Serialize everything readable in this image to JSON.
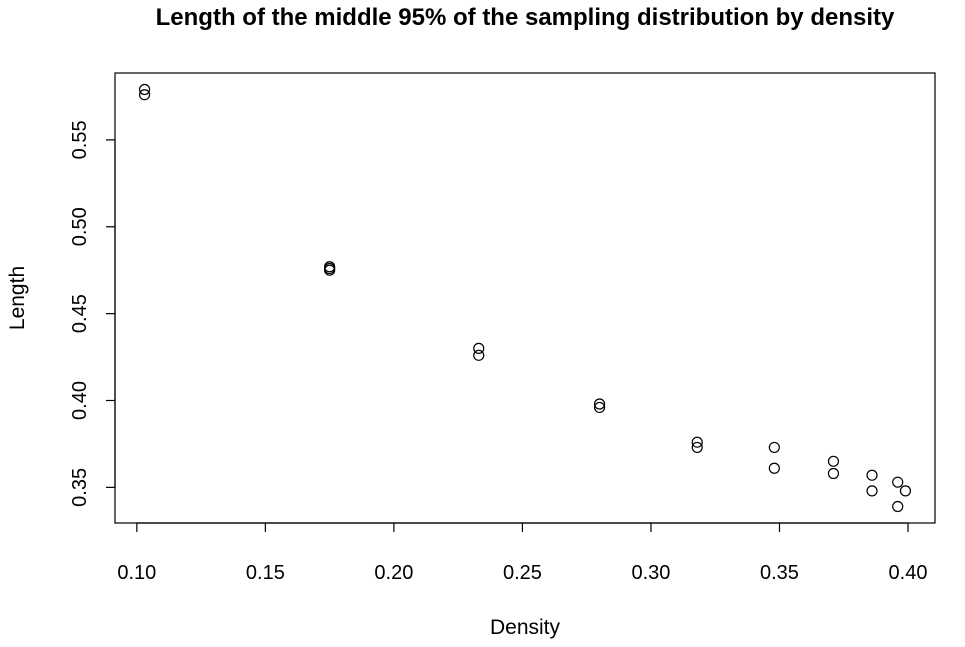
{
  "chart_data": {
    "type": "scatter",
    "title": "Length of the middle 95% of the sampling distribution by density",
    "xlabel": "Density",
    "ylabel": "Length",
    "xlim": [
      0.0915,
      0.4105
    ],
    "ylim": [
      0.3295,
      0.5885
    ],
    "x_ticks": [
      0.1,
      0.15,
      0.2,
      0.25,
      0.3,
      0.35,
      0.4
    ],
    "x_tick_labels": [
      "0.10",
      "0.15",
      "0.20",
      "0.25",
      "0.30",
      "0.35",
      "0.40"
    ],
    "y_ticks": [
      0.35,
      0.4,
      0.45,
      0.5,
      0.55
    ],
    "y_tick_labels": [
      "0.35",
      "0.40",
      "0.45",
      "0.50",
      "0.55"
    ],
    "grid": false,
    "marker": "open-circle",
    "points": [
      {
        "x": 0.103,
        "y": 0.579
      },
      {
        "x": 0.103,
        "y": 0.576
      },
      {
        "x": 0.175,
        "y": 0.477
      },
      {
        "x": 0.175,
        "y": 0.476
      },
      {
        "x": 0.175,
        "y": 0.475
      },
      {
        "x": 0.233,
        "y": 0.43
      },
      {
        "x": 0.233,
        "y": 0.426
      },
      {
        "x": 0.28,
        "y": 0.398
      },
      {
        "x": 0.28,
        "y": 0.396
      },
      {
        "x": 0.318,
        "y": 0.376
      },
      {
        "x": 0.318,
        "y": 0.373
      },
      {
        "x": 0.348,
        "y": 0.373
      },
      {
        "x": 0.348,
        "y": 0.361
      },
      {
        "x": 0.371,
        "y": 0.365
      },
      {
        "x": 0.371,
        "y": 0.358
      },
      {
        "x": 0.386,
        "y": 0.357
      },
      {
        "x": 0.386,
        "y": 0.348
      },
      {
        "x": 0.396,
        "y": 0.353
      },
      {
        "x": 0.396,
        "y": 0.339
      },
      {
        "x": 0.399,
        "y": 0.348
      }
    ]
  }
}
